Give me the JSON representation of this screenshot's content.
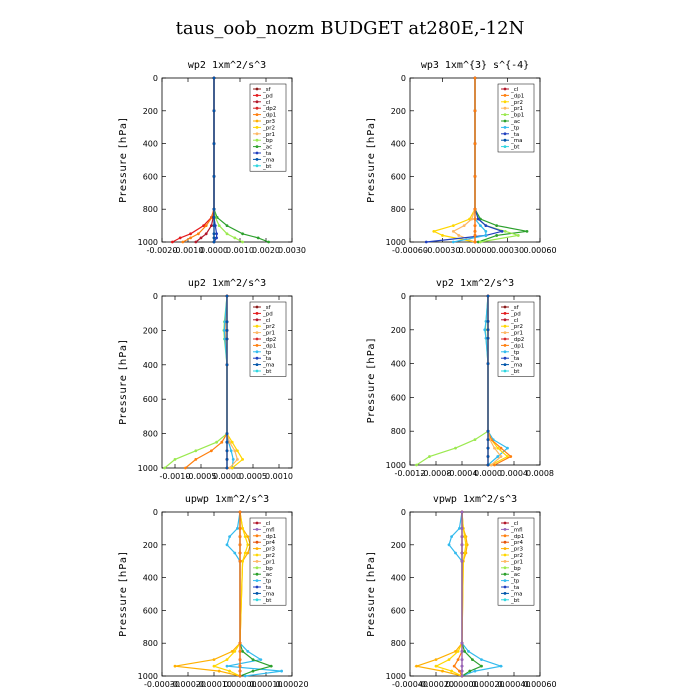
{
  "figure": {
    "title": "taus_oob_nozm  BUDGET at280E,-12N"
  },
  "colors": {
    "sf": "#8b1a1a",
    "pd": "#e41a1c",
    "cl": "#b2182b",
    "dp2": "#d62728",
    "dp1": "#ff7f0e",
    "pr3": "#ffb000",
    "pr2": "#ffd700",
    "pr1": "#fdb863",
    "bp": "#9be94f",
    "ac": "#2ca02c",
    "tp": "#33bbee",
    "ta": "#1f3fbf",
    "ma": "#0055aa",
    "bt": "#2fd6e0",
    "mfl": "#9467bd",
    "pr4": "#e6550d"
  },
  "chart_data": [
    {
      "type": "line",
      "title": "wp2   1xm^2/s^3",
      "ylabel": "Pressure [hPa]",
      "xlim": [
        -0.002,
        0.003
      ],
      "ylim": [
        1000,
        0
      ],
      "xticks": [
        "-0.0020",
        "-0.0010",
        "0.0000",
        "0.0010",
        "0.0020",
        "0.0030"
      ],
      "yticks": [
        "0",
        "200",
        "400",
        "600",
        "800",
        "1000"
      ],
      "legend": [
        "_sf",
        "_pd",
        "_cl",
        "_dp2",
        "_dp1",
        "_pr3",
        "_pr2",
        "_pr1",
        "_bp",
        "_ac",
        "_ta",
        "_ma",
        "_bt"
      ],
      "y": [
        0,
        200,
        400,
        600,
        800,
        850,
        900,
        950,
        975,
        1000
      ],
      "series": [
        {
          "key": "ac",
          "x": [
            0,
            0,
            0,
            0,
            0,
            0.00012,
            0.0005,
            0.0011,
            0.0017,
            0.0021
          ]
        },
        {
          "key": "bp",
          "x": [
            0,
            0,
            0,
            0,
            0,
            5e-05,
            0.0002,
            0.0005,
            0.0008,
            0.0011
          ]
        },
        {
          "key": "pd",
          "x": [
            0,
            0,
            0,
            0,
            0,
            -0.0001,
            -0.0004,
            -0.0009,
            -0.0013,
            -0.0016
          ]
        },
        {
          "key": "dp1",
          "x": [
            0,
            0,
            0,
            0,
            0,
            -8e-05,
            -0.0003,
            -0.0006,
            -0.0009,
            -0.0012
          ]
        },
        {
          "key": "cl",
          "x": [
            0,
            0,
            0,
            0,
            0,
            -3e-05,
            -0.0001,
            -0.0003,
            -0.0005,
            -0.0007
          ]
        },
        {
          "key": "ta",
          "x": [
            0,
            0,
            0,
            0,
            0,
            0,
            5e-05,
            0.0001,
            0.0001,
            0
          ]
        },
        {
          "key": "sf",
          "x": [
            0,
            0,
            0,
            0,
            0,
            0,
            0,
            0,
            0,
            0
          ]
        },
        {
          "key": "ma",
          "x": [
            0,
            0,
            0,
            0,
            0,
            0,
            0,
            0,
            0,
            0
          ]
        }
      ]
    },
    {
      "type": "line",
      "title": "wp3   1xm^{3} s^{-4}",
      "ylabel": "Pressure [hPa]",
      "xlim": [
        -0.0006,
        0.0006
      ],
      "ylim": [
        1000,
        0
      ],
      "xticks": [
        "-0.00060",
        "-0.00030",
        "0.00000",
        "0.00030",
        "0.00060"
      ],
      "yticks": [
        "0",
        "200",
        "400",
        "600",
        "800",
        "1000"
      ],
      "legend": [
        "_cl",
        "_dp1",
        "_pr2",
        "_pr1",
        "_bp1",
        "_ac",
        "_tp",
        "_ta",
        "_ma",
        "_bt"
      ],
      "y": [
        0,
        200,
        400,
        600,
        800,
        860,
        900,
        935,
        960,
        1000
      ],
      "series": [
        {
          "key": "ac",
          "x": [
            0,
            0,
            0,
            0,
            0,
            5e-05,
            0.0002,
            0.00048,
            0.0002,
            3e-05
          ]
        },
        {
          "key": "bp",
          "x": [
            0,
            0,
            0,
            0,
            0,
            3e-05,
            0.0001,
            0.00028,
            0.0004,
            5e-05
          ]
        },
        {
          "key": "pr2",
          "x": [
            0,
            0,
            0,
            0,
            0,
            -5e-05,
            -0.0002,
            -0.00038,
            -0.0003,
            0
          ]
        },
        {
          "key": "pr1",
          "x": [
            0,
            0,
            0,
            0,
            0,
            -3e-05,
            -0.0001,
            -0.0002,
            -0.00015,
            0
          ]
        },
        {
          "key": "ta",
          "x": [
            0,
            0,
            0,
            0,
            0,
            3e-05,
            0.0001,
            0.00025,
            0.0001,
            -0.00045
          ]
        },
        {
          "key": "tp",
          "x": [
            0,
            0,
            0,
            0,
            0,
            0,
            5e-05,
            0.0001,
            0.0001,
            -0.0002
          ]
        },
        {
          "key": "cl",
          "x": [
            0,
            0,
            0,
            0,
            0,
            0,
            0,
            0,
            0,
            0
          ]
        },
        {
          "key": "dp1",
          "x": [
            0,
            0,
            0,
            0,
            0,
            0,
            0,
            0,
            0,
            0
          ]
        }
      ]
    },
    {
      "type": "line",
      "title": "up2   1xm^2/s^3",
      "ylabel": "Pressure [hPa]",
      "xlim": [
        -0.00125,
        0.00125
      ],
      "ylim": [
        1000,
        0
      ],
      "xticks": [
        "-0.0010",
        "-0.0005",
        "0.0000",
        "0.0005",
        "0.0010"
      ],
      "yticks": [
        "0",
        "200",
        "400",
        "600",
        "800",
        "1000"
      ],
      "legend": [
        "_sf",
        "_pd",
        "_cl",
        "_pr2",
        "_pr1",
        "_dp2",
        "_dp1",
        "_tp",
        "_ta",
        "_ma",
        "_bt"
      ],
      "y": [
        0,
        150,
        200,
        250,
        400,
        800,
        850,
        900,
        950,
        1000
      ],
      "series": [
        {
          "key": "bp",
          "x": [
            0,
            -5e-05,
            -6e-05,
            -5e-05,
            0,
            0,
            -0.0002,
            -0.0006,
            -0.001,
            -0.0012
          ]
        },
        {
          "key": "dp1",
          "x": [
            0,
            -3e-05,
            -4e-05,
            -3e-05,
            0,
            0,
            -0.0001,
            -0.0003,
            -0.0006,
            -0.0008
          ]
        },
        {
          "key": "tp",
          "x": [
            0,
            -4e-05,
            -5e-05,
            -4e-05,
            0,
            0,
            3e-05,
            8e-05,
            0.00012,
            0.0001
          ]
        },
        {
          "key": "pr2",
          "x": [
            0,
            0,
            0,
            0,
            0,
            0,
            0.0001,
            0.0002,
            0.0003,
            0.0001
          ]
        },
        {
          "key": "pr1",
          "x": [
            0,
            0,
            0,
            0,
            0,
            0,
            5e-05,
            0.00015,
            0.0002,
            5e-05
          ]
        },
        {
          "key": "sf",
          "x": [
            0,
            0,
            0,
            0,
            0,
            0,
            0,
            0,
            0,
            0
          ]
        },
        {
          "key": "pd",
          "x": [
            0,
            0,
            0,
            0,
            0,
            0,
            0,
            0,
            0,
            0
          ]
        },
        {
          "key": "ma",
          "x": [
            0,
            0,
            0,
            0,
            0,
            0,
            0,
            0,
            0,
            0
          ]
        }
      ]
    },
    {
      "type": "line",
      "title": "vp2   1xm^2/s^3",
      "ylabel": "Pressure [hPa]",
      "xlim": [
        -0.0012,
        0.0008
      ],
      "ylim": [
        1000,
        0
      ],
      "xticks": [
        "-0.0012",
        "-0.0008",
        "-0.0004",
        "0.0000",
        "0.0004",
        "0.0008"
      ],
      "yticks": [
        "0",
        "200",
        "400",
        "600",
        "800",
        "1000"
      ],
      "legend": [
        "_sf",
        "_pd",
        "_cl",
        "_pr2",
        "_pr1",
        "_dp2",
        "_dp1",
        "_tp",
        "_ta",
        "_ma",
        "_bt"
      ],
      "y": [
        0,
        150,
        200,
        250,
        400,
        800,
        850,
        900,
        950,
        1000
      ],
      "series": [
        {
          "key": "bp",
          "x": [
            0,
            -3e-05,
            -4e-05,
            -3e-05,
            0,
            0,
            -0.0002,
            -0.0005,
            -0.0009,
            -0.0011
          ]
        },
        {
          "key": "tp",
          "x": [
            0,
            -3e-05,
            -5e-05,
            -3e-05,
            0,
            0,
            8e-05,
            0.0003,
            0.00015,
            0
          ]
        },
        {
          "key": "pr2",
          "x": [
            0,
            0,
            0,
            0,
            0,
            0,
            5e-05,
            0.00015,
            0.0003,
            5e-05
          ]
        },
        {
          "key": "dp1",
          "x": [
            0,
            0,
            0,
            0,
            0,
            0,
            5e-05,
            0.0002,
            0.00035,
            0.0001
          ]
        },
        {
          "key": "pr1",
          "x": [
            0,
            0,
            0,
            0,
            0,
            0,
            3e-05,
            0.0001,
            0.0002,
            5e-05
          ]
        },
        {
          "key": "sf",
          "x": [
            0,
            0,
            0,
            0,
            0,
            0,
            0,
            0,
            0,
            0
          ]
        },
        {
          "key": "pd",
          "x": [
            0,
            0,
            0,
            0,
            0,
            0,
            0,
            0,
            0,
            0
          ]
        },
        {
          "key": "ma",
          "x": [
            0,
            0,
            0,
            0,
            0,
            0,
            0,
            0,
            0,
            0
          ]
        }
      ]
    },
    {
      "type": "line",
      "title": "upwp   1xm^2/s^3",
      "ylabel": "Pressure [hPa]",
      "xlim": [
        -0.0003,
        0.0002
      ],
      "ylim": [
        1000,
        0
      ],
      "xticks": [
        "-0.00030",
        "-0.00020",
        "-0.00010",
        "0.00000",
        "0.00010",
        "0.00020"
      ],
      "yticks": [
        "0",
        "200",
        "400",
        "600",
        "800",
        "1000"
      ],
      "legend": [
        "_cl",
        "_mfl",
        "_dp1",
        "_pr4",
        "_pr3",
        "_pr2",
        "_pr1",
        "_bp",
        "_ac",
        "_tp",
        "_ta",
        "_ma",
        "_bt"
      ],
      "y": [
        0,
        100,
        150,
        200,
        250,
        300,
        800,
        850,
        900,
        940,
        970,
        1000
      ],
      "series": [
        {
          "key": "tp",
          "x": [
            0,
            -1e-05,
            -4e-05,
            -5e-05,
            -2e-05,
            0,
            0,
            3e-05,
            8e-05,
            -5e-05,
            0.00016,
            2e-05
          ]
        },
        {
          "key": "pr3",
          "x": [
            0,
            1e-05,
            3e-05,
            4e-05,
            3e-05,
            1e-05,
            0,
            -3e-05,
            -0.0001,
            -0.00025,
            -8e-05,
            0
          ]
        },
        {
          "key": "pr2",
          "x": [
            0,
            1e-05,
            2e-05,
            3e-05,
            2e-05,
            1e-05,
            0,
            -2e-05,
            -5e-05,
            -0.0001,
            -4e-05,
            0
          ]
        },
        {
          "key": "ac",
          "x": [
            0,
            0,
            0,
            0,
            0,
            0,
            0,
            1e-05,
            5e-05,
            0.00012,
            5e-05,
            0
          ]
        },
        {
          "key": "cl",
          "x": [
            0,
            0,
            0,
            0,
            0,
            0,
            0,
            0,
            0,
            0,
            0,
            0
          ]
        },
        {
          "key": "mfl",
          "x": [
            0,
            0,
            0,
            0,
            0,
            0,
            0,
            0,
            0,
            0,
            0,
            0
          ]
        },
        {
          "key": "dp1",
          "x": [
            0,
            0,
            0,
            0,
            0,
            0,
            0,
            0,
            0,
            0,
            0,
            0
          ]
        }
      ]
    },
    {
      "type": "line",
      "title": "vpwp   1xm^2/s^3",
      "ylabel": "Pressure [hPa]",
      "xlim": [
        -0.0004,
        0.0006
      ],
      "ylim": [
        1000,
        0
      ],
      "xticks": [
        "-0.00040",
        "-0.00020",
        "0.00000",
        "0.00020",
        "0.00040",
        "0.00060"
      ],
      "yticks": [
        "0",
        "200",
        "400",
        "600",
        "800",
        "1000"
      ],
      "legend": [
        "_cl",
        "_mfl",
        "_dp1",
        "_pr4",
        "_pr3",
        "_pr2",
        "_pr1",
        "_bp",
        "_ac",
        "_tp",
        "_ta",
        "_ma",
        "_bt"
      ],
      "y": [
        0,
        100,
        150,
        200,
        250,
        300,
        800,
        850,
        900,
        940,
        970,
        1000
      ],
      "series": [
        {
          "key": "tp",
          "x": [
            0,
            -2e-05,
            -8e-05,
            -0.0001,
            -5e-05,
            0,
            0,
            5e-05,
            0.00015,
            0.0003,
            0.0001,
            0
          ]
        },
        {
          "key": "pr3",
          "x": [
            0,
            1e-05,
            3e-05,
            4e-05,
            3e-05,
            1e-05,
            0,
            -5e-05,
            -0.0002,
            -0.00035,
            -0.00015,
            0
          ]
        },
        {
          "key": "pr2",
          "x": [
            0,
            1e-05,
            2e-05,
            3e-05,
            2e-05,
            1e-05,
            0,
            -3e-05,
            -0.0001,
            -0.0002,
            -8e-05,
            0
          ]
        },
        {
          "key": "ac",
          "x": [
            0,
            0,
            0,
            0,
            0,
            0,
            0,
            2e-05,
            8e-05,
            0.00015,
            6e-05,
            0
          ]
        },
        {
          "key": "dp1",
          "x": [
            0,
            0,
            0,
            0,
            0,
            0,
            0,
            0,
            -3e-05,
            -6e-05,
            -2e-05,
            0
          ]
        },
        {
          "key": "cl",
          "x": [
            0,
            0,
            0,
            0,
            0,
            0,
            0,
            0,
            0,
            0,
            0,
            0
          ]
        },
        {
          "key": "mfl",
          "x": [
            0,
            0,
            0,
            0,
            0,
            0,
            0,
            0,
            0,
            0,
            0,
            0
          ]
        }
      ]
    }
  ]
}
